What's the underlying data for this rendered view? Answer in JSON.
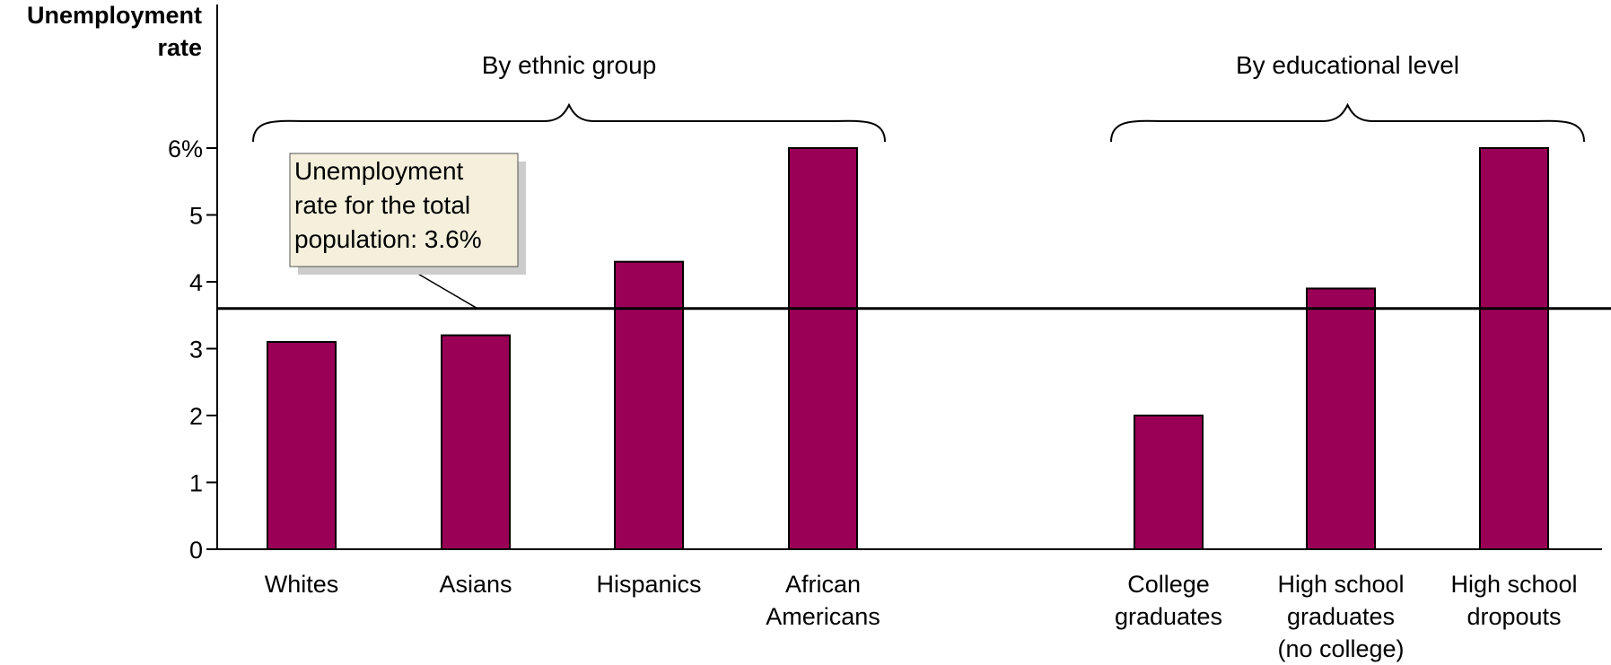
{
  "chart_data": {
    "type": "bar",
    "ylabel": "Unemployment rate",
    "ylabel_lines": [
      "Unemployment",
      "rate"
    ],
    "ylim": [
      0,
      6
    ],
    "yticks": [
      0,
      1,
      2,
      3,
      4,
      5,
      6
    ],
    "ytick_labels": [
      "0",
      "1",
      "2",
      "3",
      "4",
      "5",
      "6%"
    ],
    "grid": false,
    "bar_color": "#9b0057",
    "groups": [
      {
        "label": "By ethnic group",
        "categories": [
          "Whites",
          "Asians",
          "Hispanics",
          "African Americans"
        ],
        "category_lines": [
          [
            "Whites"
          ],
          [
            "Asians"
          ],
          [
            "Hispanics"
          ],
          [
            "African",
            "Americans"
          ]
        ],
        "values": [
          3.1,
          3.2,
          4.3,
          6.0
        ]
      },
      {
        "label": "By educational level",
        "categories": [
          "College graduates",
          "High school graduates (no college)",
          "High school dropouts"
        ],
        "category_lines": [
          [
            "College",
            "graduates"
          ],
          [
            "High school",
            "graduates",
            "(no college)"
          ],
          [
            "High school",
            "dropouts"
          ]
        ],
        "values": [
          2.0,
          3.9,
          6.0
        ]
      }
    ],
    "reference_line": {
      "value": 3.6,
      "annotation_lines": [
        "Unemployment",
        "rate for the total",
        "population: 3.6%"
      ],
      "annotation_bg": "#f4f0dc",
      "annotation_shadow": "#cccccc"
    }
  }
}
